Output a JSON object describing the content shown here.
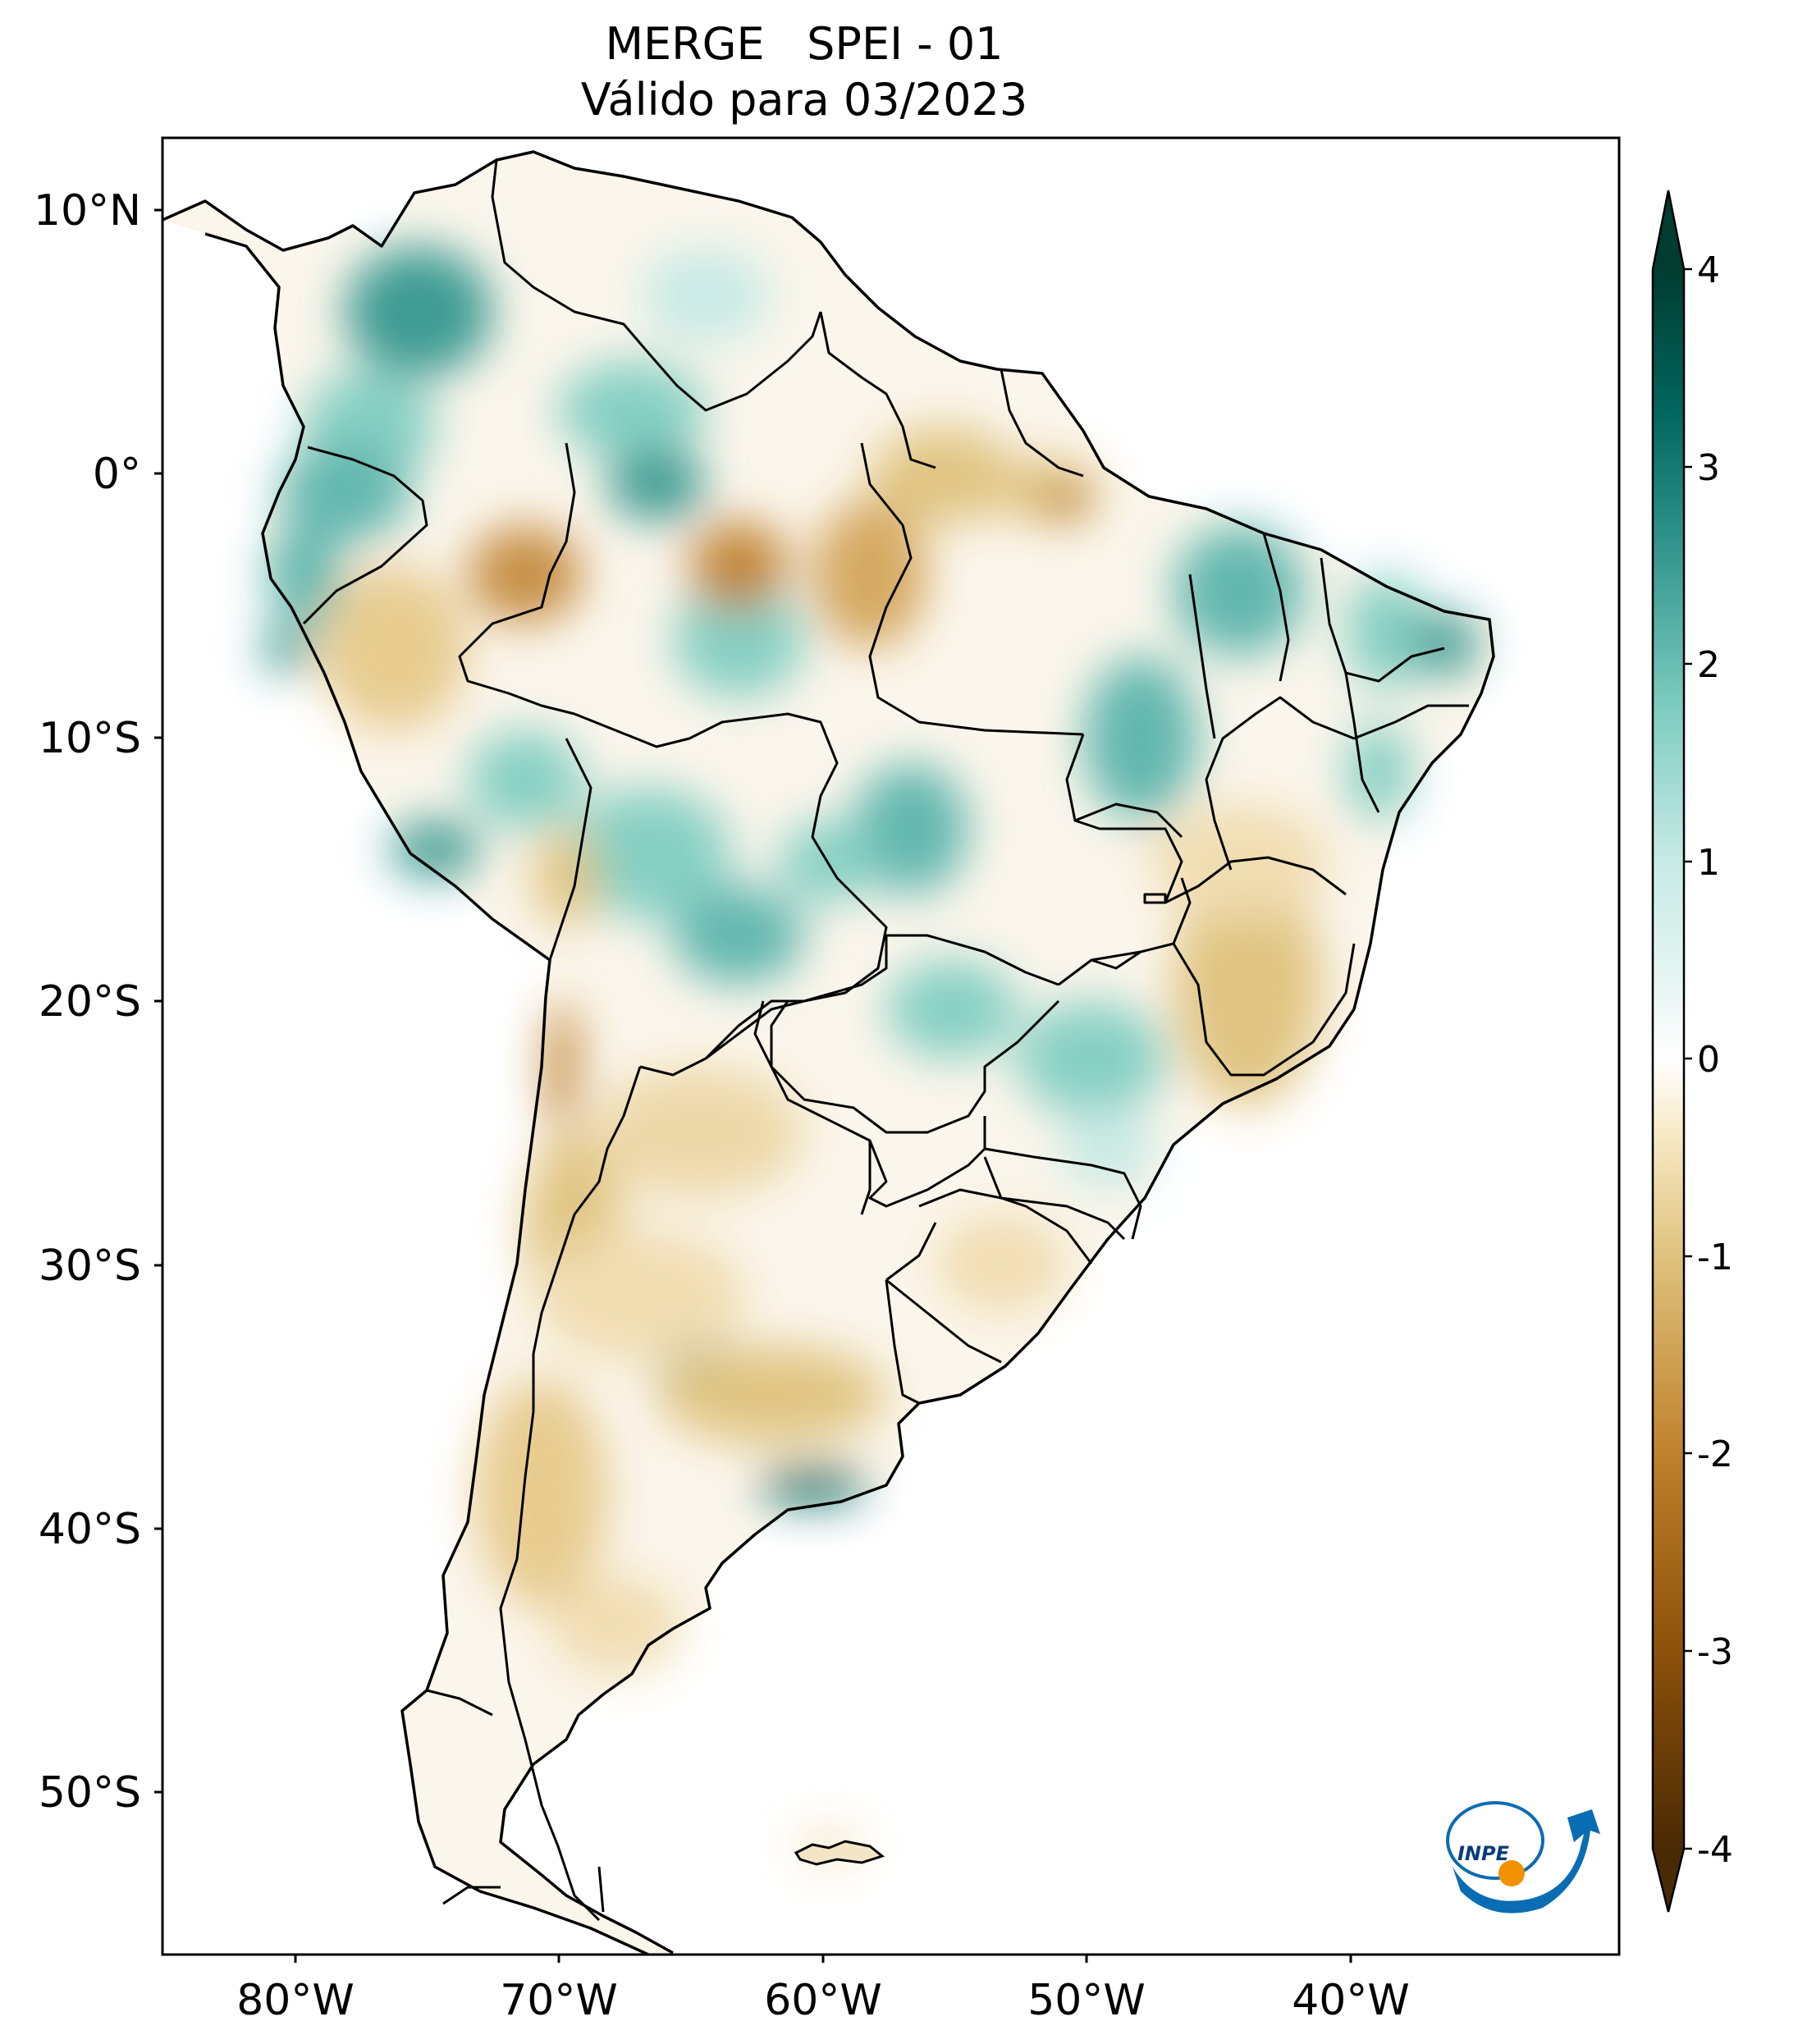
{
  "title": {
    "line1": "MERGE   SPEI - 01",
    "line2": "Válido para 03/2023"
  },
  "map": {
    "region": "South America",
    "variable": "SPEI-1",
    "lat_ticks": [
      "10°N",
      "0°",
      "10°S",
      "20°S",
      "30°S",
      "40°S",
      "50°S"
    ],
    "lon_ticks": [
      "80°W",
      "70°W",
      "60°W",
      "50°W",
      "40°W"
    ],
    "extent": {
      "lon_min": -85,
      "lon_max": -30,
      "lat_min": -56,
      "lat_max": 12.5
    }
  },
  "colorbar": {
    "ticks": [
      "4",
      "3",
      "2",
      "1",
      "0",
      "-1",
      "-2",
      "-3",
      "-4"
    ],
    "colormap": "BrBG",
    "extend": "both",
    "colors": [
      "#4a2a05",
      "#8c510a",
      "#bf812d",
      "#dfc27d",
      "#f6e8c3",
      "#ffffff",
      "#c7eae5",
      "#80cdc1",
      "#35978f",
      "#01665e",
      "#003c30"
    ]
  },
  "logo": {
    "text": "INPE",
    "colors": {
      "blue": "#0a6cb3",
      "orange": "#f39200"
    }
  }
}
